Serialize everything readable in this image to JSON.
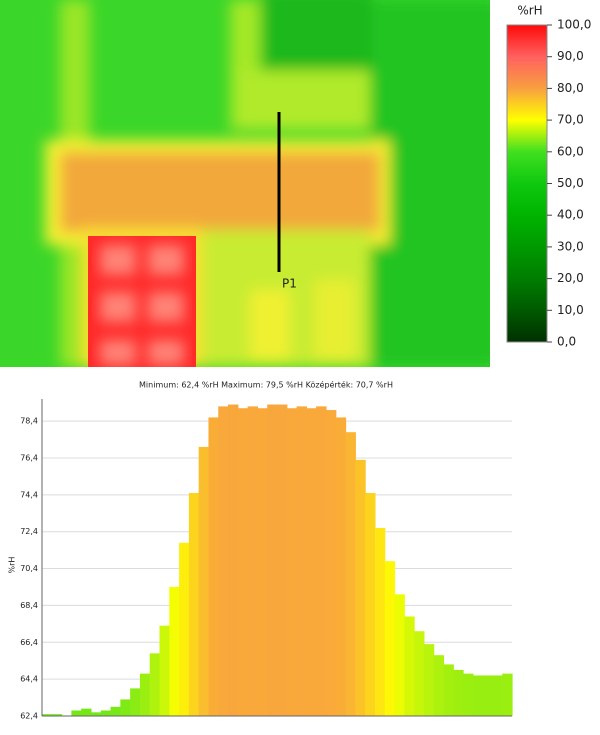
{
  "chart_data": [
    {
      "type": "colorbar",
      "title": "%rH",
      "ylim": [
        0,
        100
      ],
      "yticks": [
        {
          "value": 0,
          "label": "0,0"
        },
        {
          "value": 10,
          "label": "10,0"
        },
        {
          "value": 20,
          "label": "20,0"
        },
        {
          "value": 30,
          "label": "30,0"
        },
        {
          "value": 40,
          "label": "40,0"
        },
        {
          "value": 50,
          "label": "50,0"
        },
        {
          "value": 60,
          "label": "60,0"
        },
        {
          "value": 70,
          "label": "70,0"
        },
        {
          "value": 80,
          "label": "80,0"
        },
        {
          "value": 90,
          "label": "90,0"
        },
        {
          "value": 100,
          "label": "100,0"
        }
      ],
      "colors": [
        "#003000",
        "#005a00",
        "#007d00",
        "#009a00",
        "#00b400",
        "#10c810",
        "#40e020",
        "#ffff00",
        "#f8a040",
        "#ff6060",
        "#ff0a0a"
      ],
      "marker_label": "P1"
    },
    {
      "type": "area",
      "title": "Minimum:  62,4  %rH Maximum:  79,5  %rH Középérték:  70,7  %rH",
      "y_label": "%rH",
      "values": [
        62.5,
        62.5,
        62.4,
        62.7,
        62.8,
        62.6,
        62.7,
        62.9,
        63.3,
        63.9,
        64.7,
        65.8,
        67.3,
        69.4,
        71.8,
        74.5,
        77,
        78.6,
        79.2,
        79.3,
        79.1,
        79.2,
        79.1,
        79.3,
        79.3,
        79.1,
        79.2,
        79.1,
        79.2,
        79,
        78.6,
        77.8,
        76.3,
        74.5,
        72.6,
        70.8,
        69,
        67.8,
        67,
        66.3,
        65.7,
        65.2,
        64.9,
        64.7,
        64.6,
        64.6,
        64.6,
        64.7
      ],
      "ylim": [
        62.4,
        79.6
      ],
      "yticks": [
        {
          "value": 62.4,
          "label": "62,4"
        },
        {
          "value": 64.4,
          "label": "64,4"
        },
        {
          "value": 66.4,
          "label": "66,4"
        },
        {
          "value": 68.4,
          "label": "68,4"
        },
        {
          "value": 70.4,
          "label": "70,4"
        },
        {
          "value": 72.4,
          "label": "72,4"
        },
        {
          "value": 74.4,
          "label": "74,4"
        },
        {
          "value": 76.4,
          "label": "76,4"
        },
        {
          "value": 78.4,
          "label": "78,4"
        }
      ],
      "grid": true
    }
  ]
}
